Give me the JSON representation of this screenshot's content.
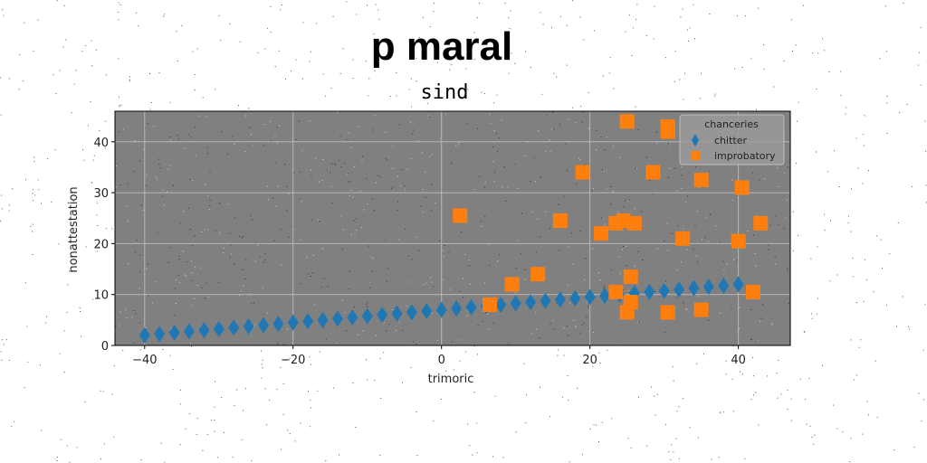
{
  "chart_data": {
    "type": "scatter",
    "suptitle": "p maral",
    "title": "sind",
    "xlabel": "trimoric",
    "ylabel": "nonattestation",
    "xlim": [
      -44,
      47
    ],
    "ylim": [
      0,
      46
    ],
    "xticks": [
      -40,
      -20,
      0,
      20,
      40
    ],
    "yticks": [
      0,
      10,
      20,
      30,
      40
    ],
    "xtick_labels": [
      "−40",
      "−20",
      "0",
      "20",
      "40"
    ],
    "ytick_labels": [
      "0",
      "10",
      "20",
      "30",
      "40"
    ],
    "grid": true,
    "background": "#808080",
    "legend": {
      "title": "chanceries",
      "placement": "top-right",
      "entries": [
        "chitter",
        "improbatory"
      ]
    },
    "series": [
      {
        "name": "chitter",
        "marker": "diamond",
        "color": "#1f77b4",
        "x": [
          -40,
          -38,
          -36,
          -34,
          -32,
          -30,
          -28,
          -26,
          -24,
          -22,
          -20,
          -18,
          -16,
          -14,
          -12,
          -10,
          -8,
          -6,
          -4,
          -2,
          0,
          2,
          4,
          6,
          8,
          10,
          12,
          14,
          16,
          18,
          20,
          22,
          24,
          26,
          28,
          30,
          32,
          34,
          36,
          38,
          40
        ],
        "y": [
          2.0,
          2.25,
          2.5,
          2.75,
          3.0,
          3.25,
          3.5,
          3.75,
          4.0,
          4.25,
          4.5,
          4.75,
          5.0,
          5.25,
          5.5,
          5.75,
          6.0,
          6.25,
          6.5,
          6.75,
          7.0,
          7.25,
          7.5,
          7.75,
          8.0,
          8.25,
          8.5,
          8.75,
          9.0,
          9.25,
          9.5,
          9.75,
          10.0,
          10.25,
          10.5,
          10.75,
          11.0,
          11.25,
          11.5,
          11.75,
          12.0
        ]
      },
      {
        "name": "improbatory",
        "marker": "square",
        "color": "#ff7f0e",
        "x": [
          25,
          30.5,
          30.5,
          19,
          28.5,
          35,
          40.5,
          2.5,
          16,
          21.5,
          23.5,
          24.5,
          26,
          32.5,
          40,
          43,
          9.5,
          13,
          25.5,
          6.5,
          23.5,
          25,
          25.5,
          30.5,
          35,
          42
        ],
        "y": [
          44,
          43,
          42,
          34,
          34,
          32.5,
          31,
          25.5,
          24.5,
          22,
          24,
          24.5,
          24,
          21,
          20.5,
          24,
          12,
          14,
          13.5,
          8,
          10.5,
          6.5,
          8.5,
          6.5,
          7,
          10.5
        ]
      }
    ]
  }
}
